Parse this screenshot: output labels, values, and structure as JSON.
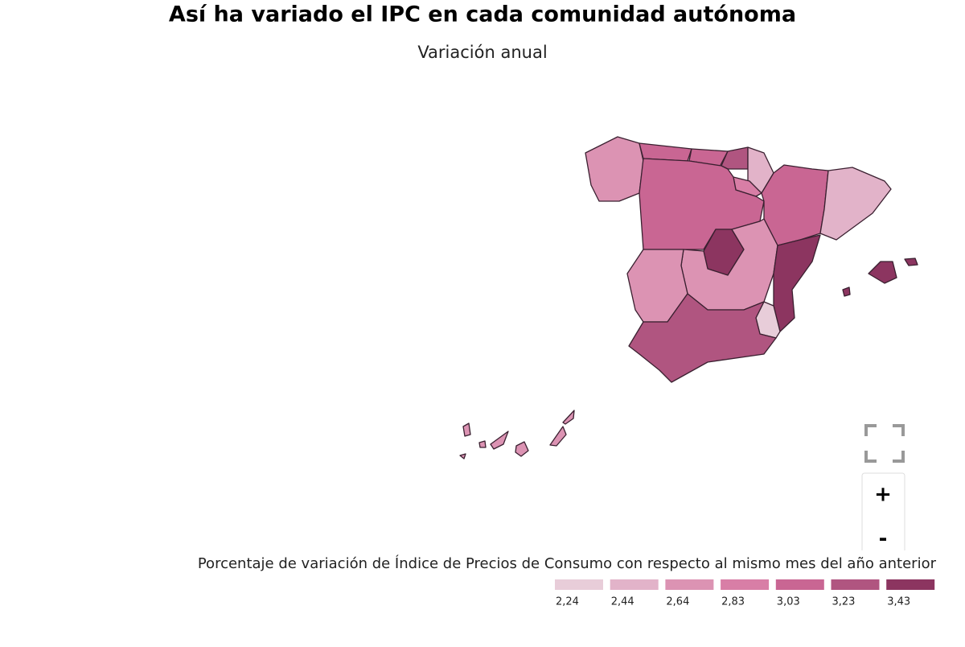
{
  "header": {
    "title": "Así ha variado el IPC en cada comunidad autónoma",
    "subtitle": "Variación anual"
  },
  "legend": {
    "title": "Porcentaje de variación de Índice de Precios de Consumo con respecto al mismo mes del año anterior",
    "items": [
      {
        "label": "2,24",
        "color": "#e8cdd9"
      },
      {
        "label": "2,44",
        "color": "#e2b3c9"
      },
      {
        "label": "2,64",
        "color": "#dc93b3"
      },
      {
        "label": "2,83",
        "color": "#d87ea6"
      },
      {
        "label": "3,03",
        "color": "#c96693"
      },
      {
        "label": "3,23",
        "color": "#b05580"
      },
      {
        "label": "3,43",
        "color": "#8c3560"
      }
    ]
  },
  "controls": {
    "zoom_in": "+",
    "zoom_out": "-"
  }
}
